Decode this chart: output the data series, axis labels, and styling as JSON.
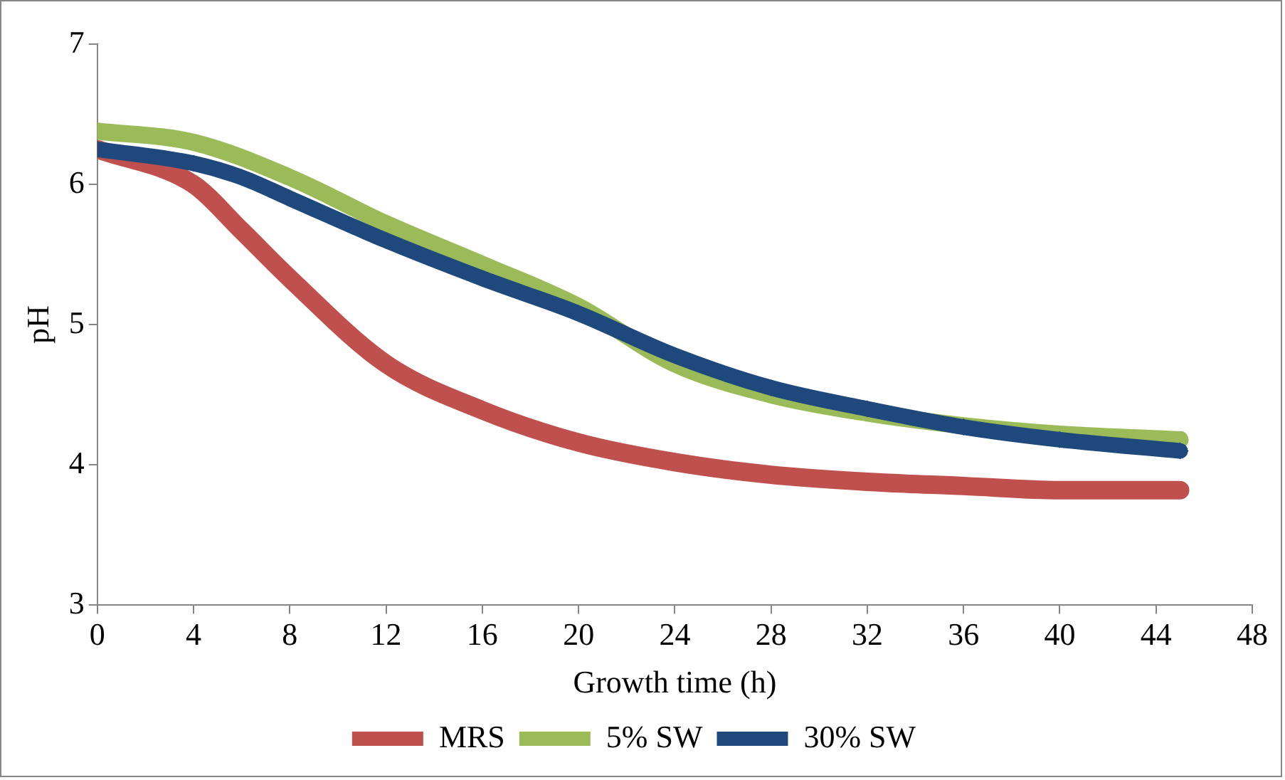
{
  "chart_data": {
    "type": "line",
    "xlabel": "Growth time (h)",
    "ylabel": "pH",
    "xlim": [
      0,
      48
    ],
    "xticks": [
      0,
      4,
      8,
      12,
      16,
      20,
      24,
      28,
      32,
      36,
      40,
      44,
      48
    ],
    "ylim": [
      3,
      7
    ],
    "yticks": [
      3,
      4,
      5,
      6,
      7
    ],
    "grid": false,
    "legend": "bottom",
    "line_style": "solid",
    "series": [
      {
        "name": "MRS",
        "color": "#c0504d",
        "marker": "square",
        "x": [
          0,
          4,
          6,
          8,
          12,
          16,
          20,
          24,
          28,
          32,
          36,
          40,
          45
        ],
        "values": [
          6.25,
          6.0,
          5.67,
          5.33,
          4.72,
          4.39,
          4.16,
          4.02,
          3.93,
          3.88,
          3.85,
          3.82,
          3.82
        ]
      },
      {
        "name": "5% SW",
        "color": "#9bbb59",
        "marker": "triangle",
        "x": [
          0,
          4,
          8,
          12,
          16,
          20,
          24,
          28,
          32,
          36,
          40,
          45
        ],
        "values": [
          6.38,
          6.3,
          6.05,
          5.72,
          5.43,
          5.13,
          4.72,
          4.5,
          4.37,
          4.28,
          4.22,
          4.18
        ]
      },
      {
        "name": "30% SW",
        "color": "#1f497d",
        "marker": "diamond",
        "x": [
          0,
          4,
          6,
          8,
          12,
          16,
          20,
          24,
          28,
          32,
          36,
          40,
          45
        ],
        "values": [
          6.25,
          6.15,
          6.05,
          5.9,
          5.6,
          5.33,
          5.08,
          4.78,
          4.55,
          4.4,
          4.27,
          4.18,
          4.1
        ]
      }
    ]
  }
}
